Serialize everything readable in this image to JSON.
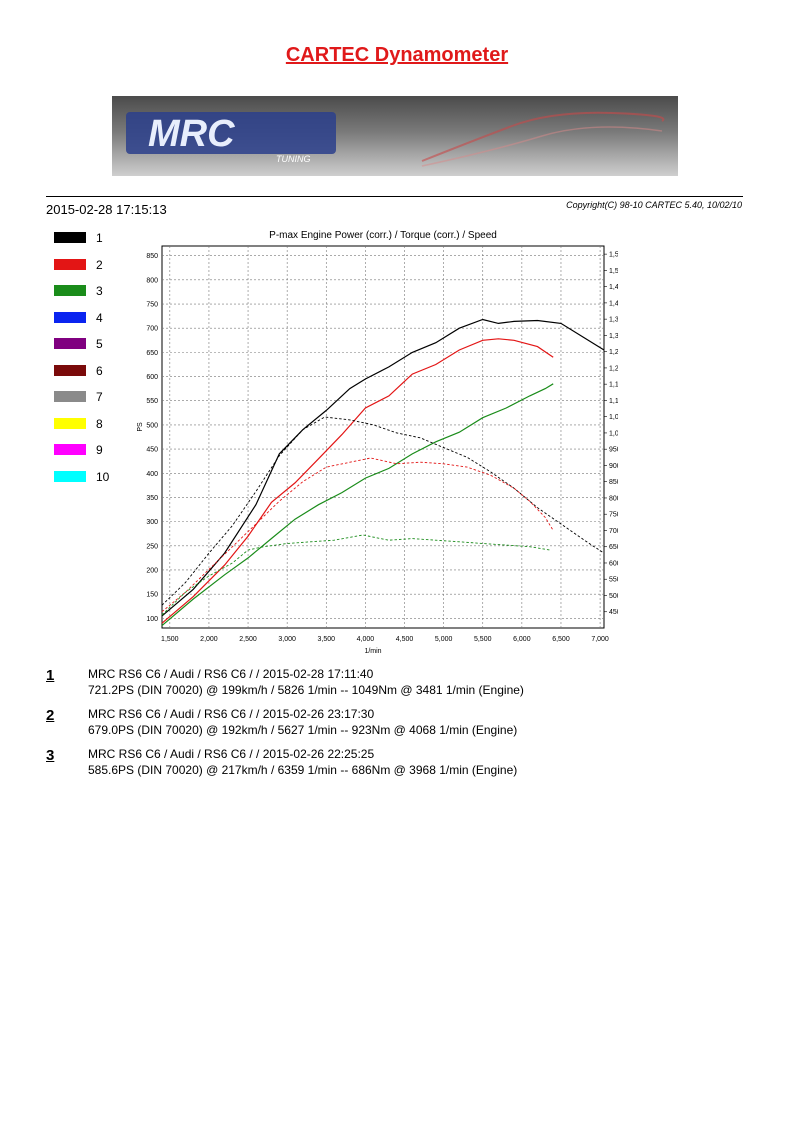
{
  "page": {
    "title": "CARTEC Dynamometer",
    "logo_text": "MRC",
    "logo_subtext": "TUNING",
    "datetime": "2015-02-28  17:15:13",
    "copyright": "Copyright(C) 98-10 CARTEC 5.40, 10/02/10"
  },
  "legend": [
    {
      "num": "1",
      "color": "#000000"
    },
    {
      "num": "2",
      "color": "#e31515"
    },
    {
      "num": "3",
      "color": "#1a8c1a"
    },
    {
      "num": "4",
      "color": "#0a24f0"
    },
    {
      "num": "5",
      "color": "#800080"
    },
    {
      "num": "6",
      "color": "#7a0a0a"
    },
    {
      "num": "7",
      "color": "#8a8a8a"
    },
    {
      "num": "8",
      "color": "#ffff00"
    },
    {
      "num": "9",
      "color": "#ff00ff"
    },
    {
      "num": "10",
      "color": "#00ffff"
    }
  ],
  "runs": [
    {
      "num": "1",
      "line1": "MRC RS6 C6 / Audi / RS6 C6 /   / 2015-02-28 17:11:40",
      "line2": "721.2PS (DIN 70020) @ 199km/h / 5826 1/min -- 1049Nm @ 3481 1/min (Engine)"
    },
    {
      "num": "2",
      "line1": "MRC RS6 C6 / Audi / RS6 C6 /   / 2015-02-26 23:17:30",
      "line2": "679.0PS (DIN 70020) @ 192km/h / 5627 1/min -- 923Nm @ 4068 1/min (Engine)"
    },
    {
      "num": "3",
      "line1": "MRC RS6 C6 / Audi / RS6 C6 /   / 2015-02-26 22:25:25",
      "line2": "585.6PS (DIN 70020) @ 217km/h / 6359 1/min -- 686Nm @ 3968 1/min (Engine)"
    }
  ],
  "chart_data": {
    "type": "line",
    "title": "P-max Engine Power (corr.) / Torque (corr.) / Speed",
    "xlabel": "1/min",
    "ylabel": "PS",
    "y2label": "Nm (Engine)",
    "xlim": [
      1400,
      7050
    ],
    "ylim": [
      80,
      870
    ],
    "y2lim": [
      400,
      1575
    ],
    "grid": true,
    "x_ticks": [
      "1,500",
      "2,000",
      "2,500",
      "3,000",
      "3,500",
      "4,000",
      "4,500",
      "5,000",
      "5,500",
      "6,000",
      "6,500",
      "7,000"
    ],
    "y_ticks": [
      "100",
      "150",
      "200",
      "250",
      "300",
      "350",
      "400",
      "450",
      "500",
      "550",
      "600",
      "650",
      "700",
      "750",
      "800",
      "850"
    ],
    "y2_ticks": [
      "450",
      "500",
      "550",
      "600",
      "650",
      "700",
      "750",
      "800",
      "850",
      "900",
      "950",
      "1,000",
      "1,050",
      "1,100",
      "1,150",
      "1,200",
      "1,250",
      "1,300",
      "1,350",
      "1,400",
      "1,450",
      "1,500",
      "1,550"
    ],
    "series": [
      {
        "name": "1",
        "kind": "power",
        "color": "#000000",
        "x": [
          1400,
          1800,
          2200,
          2600,
          2900,
          3200,
          3500,
          3800,
          4000,
          4300,
          4600,
          4900,
          5200,
          5500,
          5700,
          5900,
          6200,
          6500,
          6800,
          7050
        ],
        "y": [
          105,
          160,
          235,
          335,
          440,
          490,
          530,
          575,
          595,
          620,
          650,
          670,
          700,
          718,
          710,
          714,
          716,
          710,
          680,
          655
        ]
      },
      {
        "name": "2",
        "kind": "power",
        "color": "#e31515",
        "x": [
          1400,
          1800,
          2200,
          2500,
          2800,
          3100,
          3400,
          3700,
          4000,
          4300,
          4600,
          4900,
          5200,
          5500,
          5700,
          5900,
          6200,
          6400
        ],
        "y": [
          90,
          145,
          210,
          270,
          340,
          380,
          430,
          480,
          535,
          560,
          605,
          625,
          655,
          675,
          678,
          675,
          662,
          640
        ]
      },
      {
        "name": "3",
        "kind": "power",
        "color": "#1a8c1a",
        "x": [
          1400,
          1800,
          2200,
          2500,
          2800,
          3100,
          3400,
          3700,
          4000,
          4300,
          4600,
          4900,
          5200,
          5500,
          5800,
          6100,
          6300,
          6400
        ],
        "y": [
          85,
          140,
          190,
          225,
          265,
          305,
          335,
          360,
          390,
          410,
          440,
          465,
          485,
          515,
          535,
          560,
          575,
          585
        ]
      },
      {
        "name": "1",
        "kind": "torque",
        "color": "#000000",
        "x": [
          1400,
          1700,
          2000,
          2300,
          2600,
          2900,
          3200,
          3481,
          3800,
          4100,
          4400,
          4700,
          5000,
          5300,
          5600,
          5900,
          6200,
          6500,
          6800,
          7050
        ],
        "y": [
          470,
          540,
          630,
          715,
          820,
          930,
          1010,
          1049,
          1040,
          1025,
          1000,
          985,
          955,
          925,
          880,
          830,
          770,
          720,
          670,
          630
        ]
      },
      {
        "name": "2",
        "kind": "torque",
        "color": "#e31515",
        "x": [
          1400,
          1700,
          2000,
          2300,
          2600,
          2900,
          3200,
          3500,
          4068,
          4400,
          4700,
          5000,
          5300,
          5600,
          5900,
          6100,
          6300,
          6400
        ],
        "y": [
          450,
          510,
          580,
          650,
          720,
          790,
          850,
          895,
          923,
          905,
          910,
          905,
          895,
          870,
          830,
          790,
          740,
          700
        ]
      },
      {
        "name": "3",
        "kind": "torque",
        "color": "#1a8c1a",
        "x": [
          1400,
          1700,
          2000,
          2300,
          2500,
          2700,
          3000,
          3300,
          3600,
          3968,
          4300,
          4600,
          4900,
          5200,
          5500,
          5800,
          6100,
          6359
        ],
        "y": [
          440,
          510,
          560,
          600,
          640,
          650,
          660,
          665,
          670,
          686,
          670,
          675,
          670,
          665,
          660,
          655,
          650,
          640
        ]
      }
    ]
  }
}
